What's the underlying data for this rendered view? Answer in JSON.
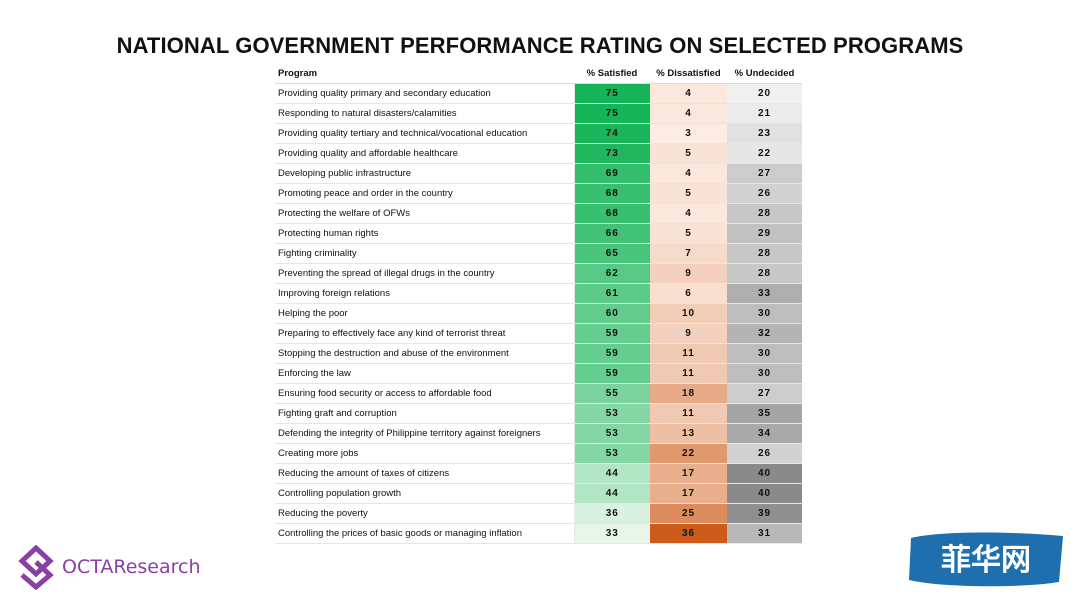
{
  "title": "NATIONAL GOVERNMENT PERFORMANCE RATING ON SELECTED PROGRAMS",
  "brand": {
    "name": "OCTAResearch",
    "color": "#8a3fa5",
    "icon": "octa-diamond-logo-icon"
  },
  "watermark": {
    "text": "菲华网",
    "color": "#1d6fb0"
  },
  "colors": {
    "satisfied_high": "#19b459",
    "dissatisfied_high": "#cc5a1a",
    "undecided_high": "#8f8f8f"
  },
  "chart_data": {
    "type": "table",
    "title": "NATIONAL GOVERNMENT PERFORMANCE RATING ON SELECTED PROGRAMS",
    "columns": [
      "Program",
      "% Satisfied",
      "% Dissatisfied",
      "% Undecided"
    ],
    "rows": [
      {
        "program": "Providing quality primary and secondary education",
        "satisfied": 75,
        "dissatisfied": 4,
        "undecided": 20
      },
      {
        "program": "Responding to natural disasters/calamities",
        "satisfied": 75,
        "dissatisfied": 4,
        "undecided": 21
      },
      {
        "program": "Providing quality tertiary and technical/vocational education",
        "satisfied": 74,
        "dissatisfied": 3,
        "undecided": 23
      },
      {
        "program": "Providing quality and affordable healthcare",
        "satisfied": 73,
        "dissatisfied": 5,
        "undecided": 22
      },
      {
        "program": "Developing public infrastructure",
        "satisfied": 69,
        "dissatisfied": 4,
        "undecided": 27
      },
      {
        "program": "Promoting peace and order in the country",
        "satisfied": 68,
        "dissatisfied": 5,
        "undecided": 26
      },
      {
        "program": "Protecting the welfare of OFWs",
        "satisfied": 68,
        "dissatisfied": 4,
        "undecided": 28
      },
      {
        "program": "Protecting human rights",
        "satisfied": 66,
        "dissatisfied": 5,
        "undecided": 29
      },
      {
        "program": "Fighting criminality",
        "satisfied": 65,
        "dissatisfied": 7,
        "undecided": 28
      },
      {
        "program": "Preventing the spread of illegal drugs in the country",
        "satisfied": 62,
        "dissatisfied": 9,
        "undecided": 28
      },
      {
        "program": "Improving foreign relations",
        "satisfied": 61,
        "dissatisfied": 6,
        "undecided": 33
      },
      {
        "program": "Helping the poor",
        "satisfied": 60,
        "dissatisfied": 10,
        "undecided": 30
      },
      {
        "program": "Preparing to effectively face any kind of terrorist threat",
        "satisfied": 59,
        "dissatisfied": 9,
        "undecided": 32
      },
      {
        "program": "Stopping the destruction and abuse of the environment",
        "satisfied": 59,
        "dissatisfied": 11,
        "undecided": 30
      },
      {
        "program": "Enforcing the law",
        "satisfied": 59,
        "dissatisfied": 11,
        "undecided": 30
      },
      {
        "program": "Ensuring food security or access to affordable food",
        "satisfied": 55,
        "dissatisfied": 18,
        "undecided": 27
      },
      {
        "program": "Fighting graft and corruption",
        "satisfied": 53,
        "dissatisfied": 11,
        "undecided": 35
      },
      {
        "program": "Defending the integrity of Philippine territory against foreigners",
        "satisfied": 53,
        "dissatisfied": 13,
        "undecided": 34
      },
      {
        "program": "Creating more jobs",
        "satisfied": 53,
        "dissatisfied": 22,
        "undecided": 26
      },
      {
        "program": "Reducing the amount of taxes of citizens",
        "satisfied": 44,
        "dissatisfied": 17,
        "undecided": 40
      },
      {
        "program": "Controlling population growth",
        "satisfied": 44,
        "dissatisfied": 17,
        "undecided": 40
      },
      {
        "program": "Reducing the poverty",
        "satisfied": 36,
        "dissatisfied": 25,
        "undecided": 39
      },
      {
        "program": "Controlling the prices of basic goods or managing inflation",
        "satisfied": 33,
        "dissatisfied": 36,
        "undecided": 31
      }
    ]
  }
}
